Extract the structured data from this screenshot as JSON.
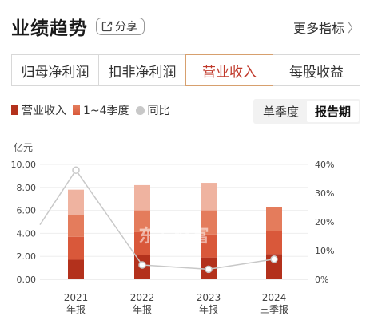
{
  "header": {
    "title": "业绩趋势",
    "share_label": "分享",
    "more_label": "更多指标"
  },
  "tabs": [
    {
      "label": "归母净利润",
      "active": false
    },
    {
      "label": "扣非净利润",
      "active": false
    },
    {
      "label": "营业收入",
      "active": true
    },
    {
      "label": "每股收益",
      "active": false
    }
  ],
  "legend": [
    {
      "label": "营业收入",
      "color": "#b3311c"
    },
    {
      "label": "1~4季度",
      "color": "#d9583a"
    },
    {
      "label": "同比",
      "color": "#c8c8c8"
    }
  ],
  "period_toggle": {
    "single_quarter": "单季度",
    "report_period": "报告期",
    "active": "report_period"
  },
  "chart_data": {
    "type": "bar",
    "unit_label": "亿元",
    "categories": [
      {
        "year": "2021",
        "period": "年报"
      },
      {
        "year": "2022",
        "period": "年报"
      },
      {
        "year": "2023",
        "period": "年报"
      },
      {
        "year": "2024",
        "period": "三季报"
      }
    ],
    "quarter_colors": [
      "#b3311c",
      "#d9583a",
      "#e47c5c",
      "#efb3a0"
    ],
    "quarters": [
      [
        1.7,
        2.0,
        1.9,
        2.2
      ],
      [
        2.1,
        2.0,
        1.9,
        2.2
      ],
      [
        1.9,
        2.0,
        2.1,
        2.4
      ],
      [
        2.2,
        2.0,
        2.1
      ]
    ],
    "yoy": [
      38,
      5,
      3.5,
      7
    ],
    "yoy_left_start": 19,
    "ylim": [
      0,
      10
    ],
    "y_ticks": [
      "0.00",
      "2.00",
      "4.00",
      "6.00",
      "8.00",
      "10.00"
    ],
    "y2lim": [
      0,
      40
    ],
    "y2_ticks": [
      "0%",
      "10%",
      "20%",
      "30%",
      "40%"
    ]
  },
  "watermark": "东方财富"
}
